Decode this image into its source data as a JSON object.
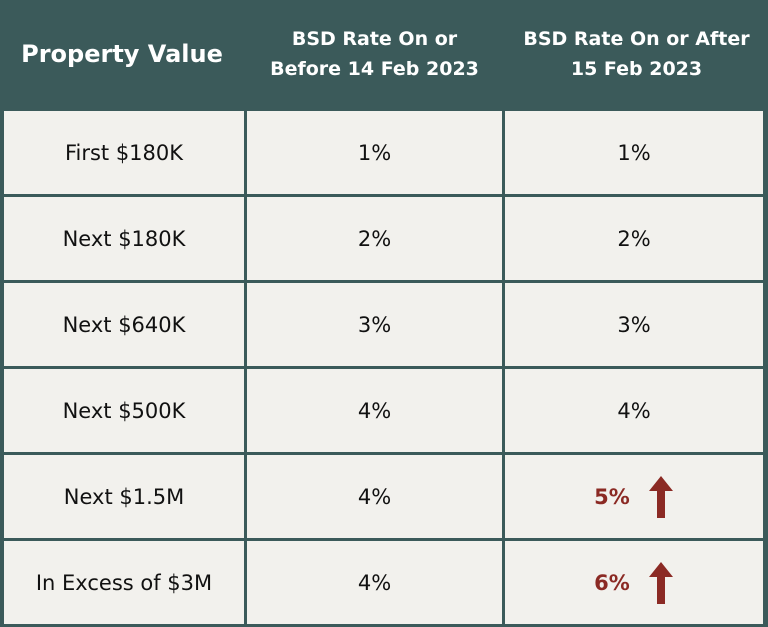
{
  "header": {
    "property_value": "Property Value",
    "before_line1": "BSD Rate On or",
    "before_line2": "Before 14 Feb 2023",
    "after_line1": "BSD Rate On or After",
    "after_line2": "15 Feb 2023"
  },
  "rows": [
    {
      "tier": "First $180K",
      "before": "1%",
      "after": "1%",
      "increased": false
    },
    {
      "tier": "Next $180K",
      "before": "2%",
      "after": "2%",
      "increased": false
    },
    {
      "tier": "Next $640K",
      "before": "3%",
      "after": "3%",
      "increased": false
    },
    {
      "tier": "Next $500K",
      "before": "4%",
      "after": "4%",
      "increased": false
    },
    {
      "tier": "Next $1.5M",
      "before": "4%",
      "after": "5%",
      "increased": true
    },
    {
      "tier": "In Excess of $3M",
      "before": "4%",
      "after": "6%",
      "increased": true
    }
  ],
  "colors": {
    "header_bg": "#3b5a5a",
    "cell_bg": "#f2f1ed",
    "increase": "#8b2a24"
  },
  "icons": {
    "increase": "arrow-up-icon"
  }
}
